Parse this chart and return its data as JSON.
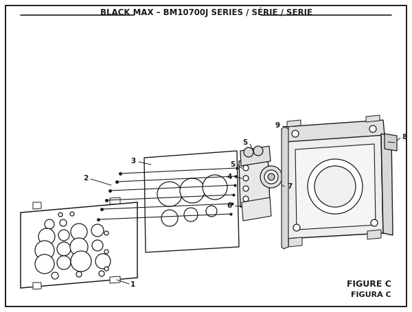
{
  "title": "BLACK MAX – BM10700J SERIES / SÉRIE / SERIE",
  "figure_label": "FIGURE C",
  "figure_label2": "FIGURA C",
  "bg_color": "#ffffff",
  "line_color": "#1a1a1a",
  "title_fontsize": 8.5,
  "label_fontsize": 7.5,
  "figure_label_fontsize": 9
}
